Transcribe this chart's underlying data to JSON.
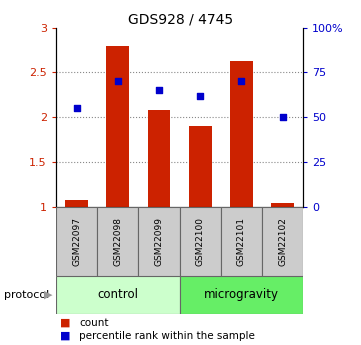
{
  "title": "GDS928 / 4745",
  "samples": [
    "GSM22097",
    "GSM22098",
    "GSM22099",
    "GSM22100",
    "GSM22101",
    "GSM22102"
  ],
  "bar_heights": [
    1.08,
    2.8,
    2.08,
    1.9,
    2.63,
    1.05
  ],
  "percentile_values": [
    55,
    70,
    65,
    62,
    70,
    50
  ],
  "bar_color": "#cc2200",
  "dot_color": "#0000cc",
  "ylim_left": [
    1.0,
    3.0
  ],
  "ylim_right": [
    0,
    100
  ],
  "yticks_left": [
    1.0,
    1.5,
    2.0,
    2.5,
    3.0
  ],
  "yticks_right": [
    0,
    25,
    50,
    75,
    100
  ],
  "ytick_labels_left": [
    "1",
    "1.5",
    "2",
    "2.5",
    "3"
  ],
  "ytick_labels_right": [
    "0",
    "25",
    "50",
    "75",
    "100%"
  ],
  "groups": [
    {
      "label": "control",
      "indices": [
        0,
        1,
        2
      ],
      "color": "#ccffcc"
    },
    {
      "label": "microgravity",
      "indices": [
        3,
        4,
        5
      ],
      "color": "#66ee66"
    }
  ],
  "protocol_label": "protocol",
  "legend_count_label": "count",
  "legend_pct_label": "percentile rank within the sample",
  "bar_width": 0.55,
  "grid_color": "#888888",
  "bg_color": "#ffffff",
  "sample_box_color": "#cccccc",
  "sample_box_edge": "#666666"
}
